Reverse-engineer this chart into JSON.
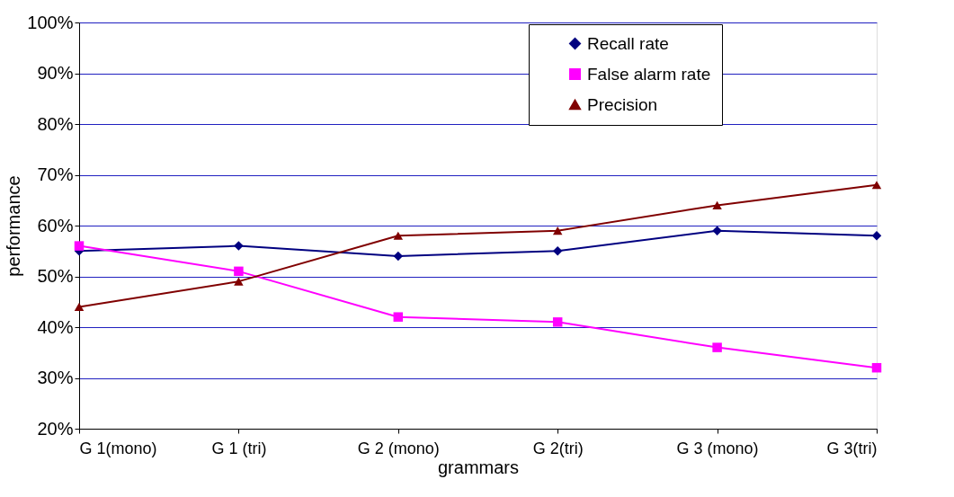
{
  "chart_data": {
    "type": "line",
    "xlabel": "grammars",
    "ylabel": "performance",
    "categories": [
      "G 1(mono)",
      "G 1 (tri)",
      "G 2 (mono)",
      "G 2(tri)",
      "G 3 (mono)",
      "G 3(tri)"
    ],
    "series": [
      {
        "name": "Recall rate",
        "color": "#000080",
        "marker": "diamond",
        "values": [
          55,
          56,
          54,
          55,
          59,
          58
        ]
      },
      {
        "name": "False alarm rate",
        "color": "#ff00ff",
        "marker": "square",
        "values": [
          56,
          51,
          42,
          41,
          36,
          32
        ]
      },
      {
        "name": "Precision",
        "color": "#800000",
        "marker": "triangle",
        "values": [
          44,
          49,
          58,
          59,
          64,
          68
        ]
      }
    ],
    "ylim": [
      20,
      100
    ],
    "yticks": [
      {
        "value": 20,
        "label": "20%"
      },
      {
        "value": 30,
        "label": "30%"
      },
      {
        "value": 40,
        "label": "40%"
      },
      {
        "value": 50,
        "label": "50%"
      },
      {
        "value": 60,
        "label": "60%"
      },
      {
        "value": 70,
        "label": "70%"
      },
      {
        "value": 80,
        "label": "80%"
      },
      {
        "value": 90,
        "label": "90%"
      },
      {
        "value": 100,
        "label": "100%"
      }
    ],
    "grid": "y",
    "legend": "top right",
    "line_style": "solid"
  }
}
